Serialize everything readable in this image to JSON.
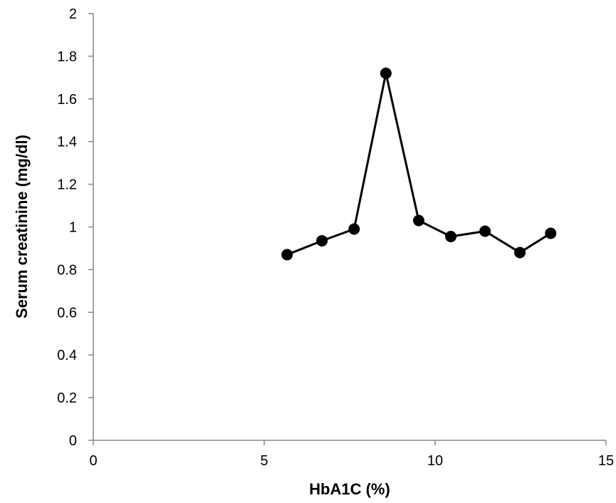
{
  "chart_data": {
    "type": "line",
    "x_label": "HbA1C (%)",
    "y_label": "Serum creatinine (mg/dl)",
    "x": [
      5.67,
      6.69,
      7.63,
      8.56,
      9.52,
      10.46,
      11.46,
      12.48,
      13.38
    ],
    "values": [
      0.87,
      0.935,
      0.99,
      1.72,
      1.03,
      0.955,
      0.98,
      0.88,
      0.97
    ],
    "color": "#000000",
    "xlim": [
      0,
      15
    ],
    "xticks": [
      0,
      5,
      10,
      15
    ],
    "ylim": [
      0,
      2
    ],
    "yticks": [
      0,
      0.2,
      0.4,
      0.6,
      0.8,
      1,
      1.2,
      1.4,
      1.6,
      1.8,
      2
    ],
    "grid": false
  }
}
